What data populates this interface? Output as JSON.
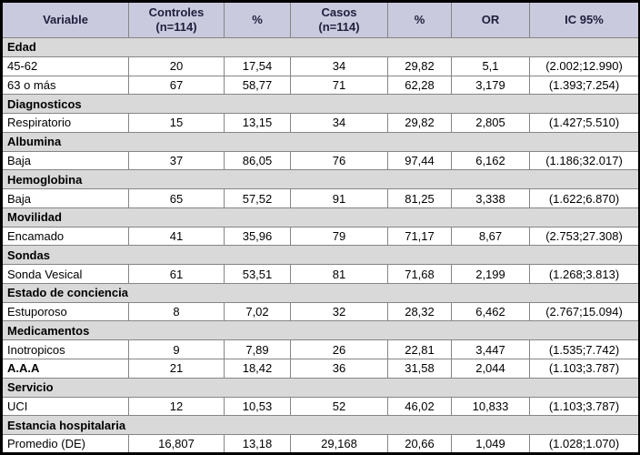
{
  "colors": {
    "header_bg": "#c9cade",
    "section_bg": "#d9d9d9",
    "border_outer": "#000000",
    "border_inner": "#858585",
    "header_text": "#1f1f3d"
  },
  "table": {
    "columns": [
      {
        "label": "Variable",
        "sub": ""
      },
      {
        "label": "Controles",
        "sub": "(n=114)"
      },
      {
        "label": "%",
        "sub": ""
      },
      {
        "label": "Casos",
        "sub": "(n=114)"
      },
      {
        "label": "%",
        "sub": ""
      },
      {
        "label": "OR",
        "sub": ""
      },
      {
        "label": "IC 95%",
        "sub": ""
      }
    ],
    "rows": [
      {
        "type": "section",
        "label": "Edad"
      },
      {
        "type": "data",
        "cells": [
          "45-62",
          "20",
          "17,54",
          "34",
          "29,82",
          "5,1",
          "(2.002;12.990)"
        ]
      },
      {
        "type": "data",
        "cells": [
          "63 o más",
          "67",
          "58,77",
          "71",
          "62,28",
          "3,179",
          "(1.393;7.254)"
        ]
      },
      {
        "type": "section",
        "label": "Diagnosticos"
      },
      {
        "type": "data",
        "cells": [
          "Respiratorio",
          "15",
          "13,15",
          "34",
          "29,82",
          "2,805",
          "(1.427;5.510)"
        ]
      },
      {
        "type": "section",
        "label": "Albumina"
      },
      {
        "type": "data",
        "cells": [
          "Baja",
          "37",
          "86,05",
          "76",
          "97,44",
          "6,162",
          "(1.186;32.017)"
        ]
      },
      {
        "type": "section",
        "label": "Hemoglobina"
      },
      {
        "type": "data",
        "cells": [
          "Baja",
          "65",
          "57,52",
          "91",
          "81,25",
          "3,338",
          "(1.622;6.870)"
        ]
      },
      {
        "type": "section",
        "label": "Movilidad"
      },
      {
        "type": "data",
        "cells": [
          "Encamado",
          "41",
          "35,96",
          "79",
          "71,17",
          "8,67",
          "(2.753;27.308)"
        ]
      },
      {
        "type": "section",
        "label": "Sondas"
      },
      {
        "type": "data",
        "cells": [
          "Sonda Vesical",
          "61",
          "53,51",
          "81",
          "71,68",
          "2,199",
          "(1.268;3.813)"
        ]
      },
      {
        "type": "section",
        "label": "Estado de conciencia"
      },
      {
        "type": "data",
        "cells": [
          "Estuporoso",
          "8",
          "7,02",
          "32",
          "28,32",
          "6,462",
          "(2.767;15.094)"
        ]
      },
      {
        "type": "section",
        "label": "Medicamentos"
      },
      {
        "type": "data",
        "cells": [
          "Inotropicos",
          "9",
          "7,89",
          "26",
          "22,81",
          "3,447",
          "(1.535;7.742)"
        ]
      },
      {
        "type": "data",
        "bold_label": true,
        "cells": [
          "A.A.A",
          "21",
          "18,42",
          "36",
          "31,58",
          "2,044",
          "(1.103;3.787)"
        ]
      },
      {
        "type": "section",
        "label": "Servicio"
      },
      {
        "type": "data",
        "cells": [
          "UCI",
          "12",
          "10,53",
          "52",
          "46,02",
          "10,833",
          "(1.103;3.787)"
        ]
      },
      {
        "type": "section",
        "label": "Estancia hospitalaria"
      },
      {
        "type": "data",
        "cells": [
          "Promedio (DE)",
          "16,807",
          "13,18",
          "29,168",
          "20,66",
          "1,049",
          "(1.028;1.070)"
        ]
      }
    ]
  }
}
